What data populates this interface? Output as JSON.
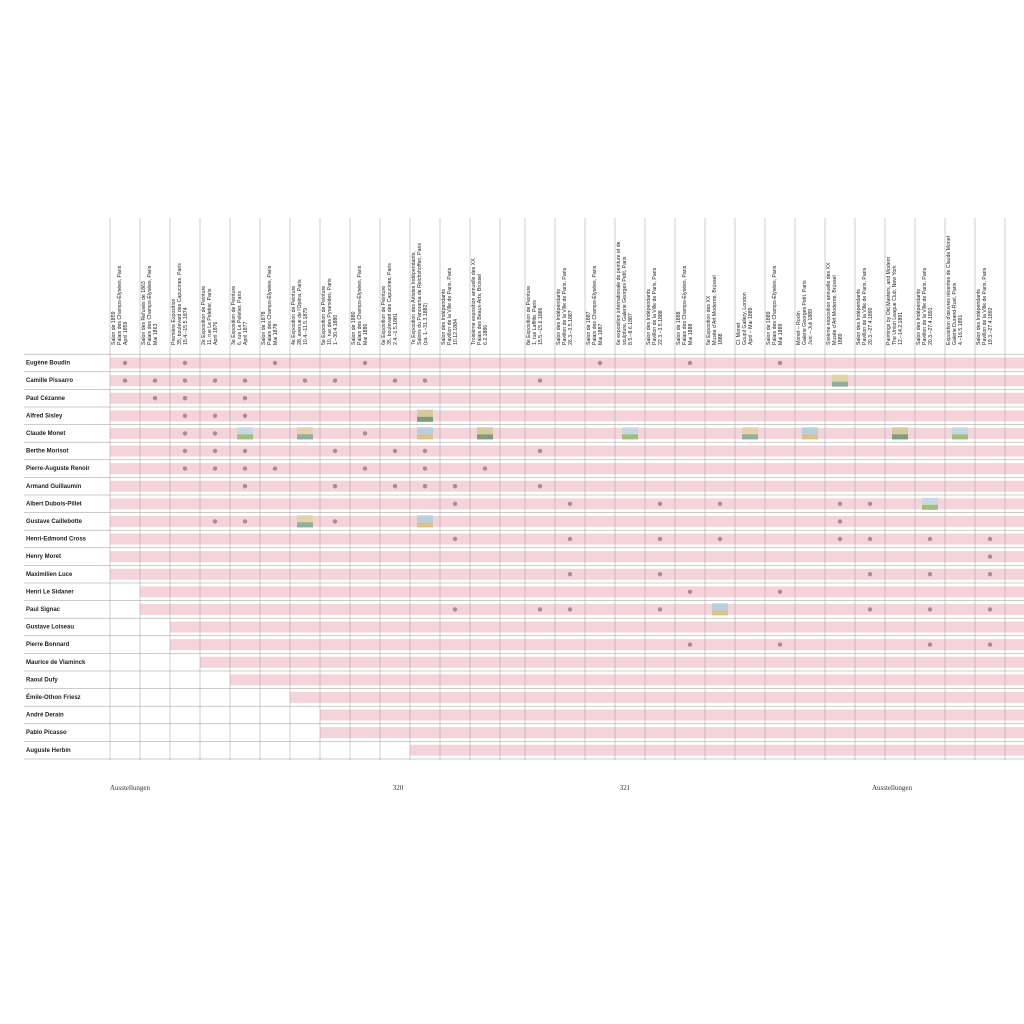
{
  "columns": [
    {
      "lines": [
        "Salon de 1859",
        "Palais des Champs-Élysées, Paris",
        "April 1859"
      ]
    },
    {
      "lines": [
        "Salon des Refusés de 1863",
        "Palais des Champs-Élysées, Paris",
        "Mai 1863"
      ]
    },
    {
      "lines": [
        "Première Exposition",
        "35, boulevard des Capucines, Paris",
        "15.4.–15.5.1874"
      ]
    },
    {
      "lines": [
        "2e Exposition de Peinture",
        "11, rue Le Peletier, Paris",
        "April 1876"
      ]
    },
    {
      "lines": [
        "3e Exposition de Peinture",
        "6, rue Le Peletier, Paris",
        "April 1877"
      ]
    },
    {
      "lines": [
        "Salon de 1878",
        "Palais des Champs-Élysées, Paris",
        "Mai 1878"
      ]
    },
    {
      "lines": [
        "4e Exposition de Peinture",
        "28, avenue de l'Opéra, Paris",
        "10.4.–11.5.1879"
      ]
    },
    {
      "lines": [
        "5e Exposition de Peinture",
        "10, rue des Pyramides, Paris",
        "1.–30.4.1880"
      ]
    },
    {
      "lines": [
        "Salon de 1880",
        "Palais des Champs-Élysées, Paris",
        "Mai 1880"
      ]
    },
    {
      "lines": [
        "6e Exposition de Peinture",
        "35, boulevard des Capucines, Paris",
        "2.4.–1.5.1881"
      ]
    },
    {
      "lines": [
        "7e Exposition des Artistes Indépendants,",
        "Salons du Panorama de Reichshoffen, Paris",
        "(ca. 1.–31.3.1882)"
      ]
    },
    {
      "lines": [
        "Salon des Indépendants",
        "Pavillon de la Ville de Paris, Paris",
        "10.12.1884"
      ]
    },
    {
      "lines": [
        "Troisième exposition annuelle des XX",
        "Palais des Beaux-Arts, Brüssel",
        "6.2.1886"
      ]
    },
    {
      "lines": [
        "8e Exposition de Peinture",
        "1, rue Laffitte, Paris",
        "15.5.–15.6.1886"
      ]
    },
    {
      "lines": [
        "Salon des Indépendants",
        "Pavillon de la Ville de Paris, Paris",
        "26.3.–3.5.1887"
      ]
    },
    {
      "lines": [
        "Salon de 1887",
        "Palais des Champs-Élysées, Paris",
        "Mai 1887"
      ]
    },
    {
      "lines": [
        "6e exposition internationale de peinture et de",
        "sculpture, Galerie Georges Petit, Paris",
        "8.5.–8.6.1887"
      ]
    },
    {
      "lines": [
        "Salon des Indépendants",
        "Pavillon de la Ville de Paris, Paris",
        "22.3.–3.5.1888"
      ]
    },
    {
      "lines": [
        "Salon de 1888",
        "Palais des Champs-Élysées, Paris",
        "Mai 1888"
      ]
    },
    {
      "lines": [
        "5e Exposition des XX",
        "Musée d'Art Moderne, Brüssel",
        "1888"
      ]
    },
    {
      "lines": [
        "Cl. Monet",
        "Goupil Gallery, London",
        "April – Mai 1889"
      ]
    },
    {
      "lines": [
        "Salon de 1889",
        "Palais des Champs-Élysées, Paris",
        "Mai 1889"
      ]
    },
    {
      "lines": [
        "Monet – Rodin",
        "Galerie Georges Petit, Paris",
        "Juni – Juli 1889"
      ]
    },
    {
      "lines": [
        "Sixième exposition annuelle des XX",
        "Musée d'Art Moderne, Brüssel",
        "1889"
      ]
    },
    {
      "lines": [
        "Salon des Indépendants",
        "Pavillon de la Ville de Paris, Paris",
        "20.3.–27.4.1890"
      ]
    },
    {
      "lines": [
        "Paintings by Old Masters, and Modern",
        "The Union League Club, New York",
        "12.–14.2.1891"
      ]
    },
    {
      "lines": [
        "Salon des Indépendants",
        "Pavillon de la Ville de Paris, Paris",
        "20.3.–27.4.1891"
      ]
    },
    {
      "lines": [
        "Exposition d'œuvres récentes de Claude Monet",
        "Galerie Durand-Ruel, Paris",
        "4.–16.5.1891"
      ]
    },
    {
      "lines": [
        "Salon des Indépendants",
        "Pavillon de la Ville de Paris, Paris",
        "19.3.–27.4.1892"
      ]
    }
  ],
  "rows": [
    {
      "name": "Eugène Boudin",
      "from": 1,
      "dots": [
        1,
        3,
        6,
        9,
        16,
        19,
        22
      ],
      "images": []
    },
    {
      "name": "Camille Pissarro",
      "from": 1,
      "dots": [
        1,
        2,
        3,
        4,
        5,
        7,
        8,
        10,
        11,
        14
      ],
      "images": [
        24
      ]
    },
    {
      "name": "Paul Cézanne",
      "from": 1,
      "dots": [
        2,
        3,
        5
      ],
      "images": []
    },
    {
      "name": "Alfred Sisley",
      "from": 1,
      "dots": [
        3,
        4,
        5
      ],
      "images": [
        11
      ]
    },
    {
      "name": "Claude Monet",
      "from": 1,
      "dots": [
        3,
        4,
        9
      ],
      "images": [
        5,
        7,
        11,
        13,
        17,
        21,
        23,
        26,
        28
      ]
    },
    {
      "name": "Berthe Morisot",
      "from": 1,
      "dots": [
        3,
        4,
        5,
        8,
        10,
        11,
        14
      ],
      "images": []
    },
    {
      "name": "Pierre-Auguste Renoir",
      "from": 1,
      "dots": [
        3,
        4,
        5,
        6,
        9,
        11,
        13
      ],
      "images": []
    },
    {
      "name": "Armand Guillaumin",
      "from": 1,
      "dots": [
        5,
        8,
        10,
        11,
        12,
        14
      ],
      "images": []
    },
    {
      "name": "Albert Dubois-Pillet",
      "from": 1,
      "dots": [
        12,
        15,
        18,
        20,
        24,
        25
      ],
      "images": [
        27
      ]
    },
    {
      "name": "Gustave Caillebotte",
      "from": 1,
      "dots": [
        4,
        5,
        8,
        24
      ],
      "images": [
        7,
        11
      ]
    },
    {
      "name": "Henri-Edmond Cross",
      "from": 1,
      "dots": [
        12,
        15,
        18,
        20,
        24,
        25,
        27,
        29
      ],
      "images": []
    },
    {
      "name": "Henry Moret",
      "from": 1,
      "dots": [
        29
      ],
      "images": []
    },
    {
      "name": "Maximilien Luce",
      "from": 1,
      "dots": [
        15,
        18,
        25,
        27,
        29
      ],
      "images": []
    },
    {
      "name": "Henri Le Sidaner",
      "from": 2,
      "dots": [
        19,
        22
      ],
      "images": []
    },
    {
      "name": "Paul Signac",
      "from": 2,
      "dots": [
        12,
        14,
        15,
        18,
        25,
        27,
        29
      ],
      "images": [
        20
      ]
    },
    {
      "name": "Gustave Loiseau",
      "from": 3,
      "dots": [],
      "images": []
    },
    {
      "name": "Pierre Bonnard",
      "from": 3,
      "dots": [
        19,
        22,
        27,
        29
      ],
      "images": []
    },
    {
      "name": "Maurice de Vlaminck",
      "from": 4,
      "dots": [],
      "images": []
    },
    {
      "name": "Raoul Dufy",
      "from": 5,
      "dots": [],
      "images": []
    },
    {
      "name": "Émile-Othon Friesz",
      "from": 7,
      "dots": [],
      "images": []
    },
    {
      "name": "André Derain",
      "from": 8,
      "dots": [],
      "images": []
    },
    {
      "name": "Pablo Picasso",
      "from": 8,
      "dots": [],
      "images": []
    },
    {
      "name": "Auguste Herbin",
      "from": 11,
      "dots": [],
      "images": []
    }
  ],
  "footer": {
    "left": "Ausstellungen",
    "page_left": "320",
    "page_right": "321",
    "right": "Ausstellungen"
  }
}
